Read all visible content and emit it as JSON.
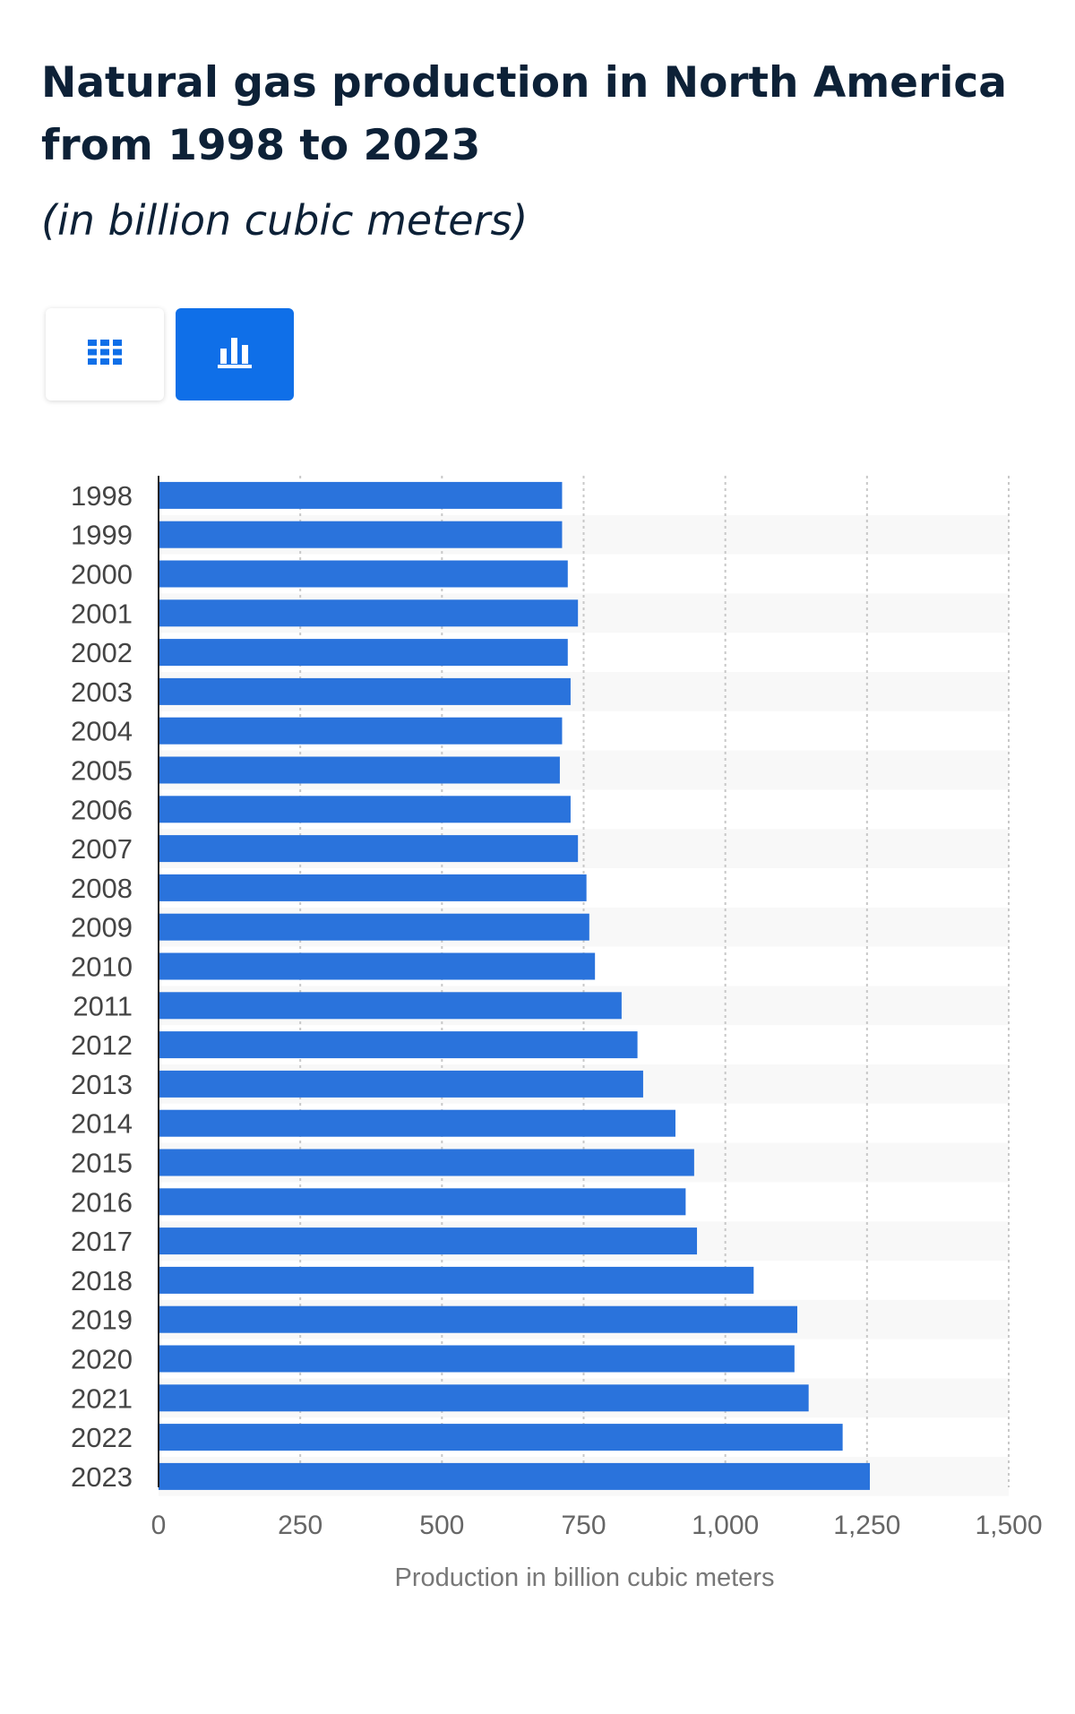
{
  "header": {
    "title": "Natural gas production in North America from 1998 to 2023",
    "subtitle": "(in billion cubic meters)"
  },
  "view_toggle": {
    "table_icon": "grid-icon",
    "chart_icon": "bar-chart-icon",
    "active": "chart",
    "accent_color": "#0f6fe8"
  },
  "chart_data": {
    "type": "bar",
    "orientation": "horizontal",
    "categories": [
      "1998",
      "1999",
      "2000",
      "2001",
      "2002",
      "2003",
      "2004",
      "2005",
      "2006",
      "2007",
      "2008",
      "2009",
      "2010",
      "2011",
      "2012",
      "2013",
      "2014",
      "2015",
      "2016",
      "2017",
      "2018",
      "2019",
      "2020",
      "2021",
      "2022",
      "2023"
    ],
    "values": [
      712,
      712,
      722,
      740,
      722,
      727,
      712,
      708,
      727,
      740,
      755,
      760,
      770,
      817,
      845,
      855,
      912,
      945,
      930,
      950,
      1050,
      1127,
      1122,
      1147,
      1207,
      1255
    ],
    "xlabel": "Production in billion cubic meters",
    "xlim": [
      0,
      1500
    ],
    "xticks": [
      0,
      250,
      500,
      750,
      1000,
      1250,
      1500
    ],
    "xtick_labels": [
      "0",
      "250",
      "500",
      "750",
      "1,000",
      "1,250",
      "1,500"
    ],
    "grid": true,
    "bar_color": "#2a73dc",
    "stripe_color": "#f8f8f8",
    "grid_color": "#c8c8c8"
  }
}
